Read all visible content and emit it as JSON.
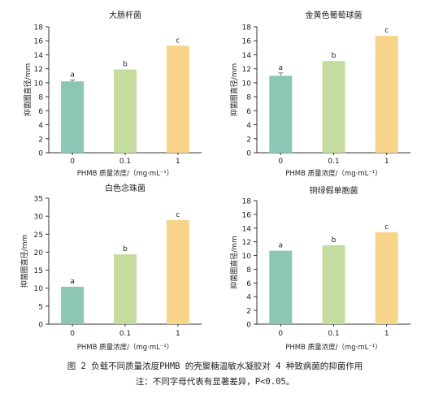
{
  "chart_data": [
    {
      "type": "bar",
      "title": "大肠杆菌",
      "ylabel": "抑菌圈直径/mm",
      "xlabel": "PHMB 质量浓度/（mg·mL⁻¹）",
      "categories": [
        "0",
        "0.1",
        "1"
      ],
      "values": [
        10.2,
        11.9,
        15.3
      ],
      "errors": [
        0.2,
        0.0,
        0.0
      ],
      "letters": [
        "a",
        "b",
        "c"
      ],
      "colors": [
        "#8bc7b4",
        "#c5dc9f",
        "#f7d48a"
      ],
      "yticks": [
        "0",
        "2",
        "4",
        "6",
        "8",
        "10",
        "12",
        "14",
        "16",
        "18"
      ],
      "ylim": [
        0,
        18
      ]
    },
    {
      "type": "bar",
      "title": "金黄色葡萄球菌",
      "ylabel": "抑菌圈直径/mm",
      "xlabel": "PHMB 质量浓度/（mg·mL⁻¹）",
      "categories": [
        "0",
        "0.1",
        "1"
      ],
      "values": [
        11.0,
        13.1,
        16.7
      ],
      "errors": [
        0.4,
        0.0,
        0.0
      ],
      "letters": [
        "a",
        "b",
        "c"
      ],
      "colors": [
        "#8bc7b4",
        "#c5dc9f",
        "#f7d48a"
      ],
      "yticks": [
        "0",
        "2",
        "4",
        "6",
        "8",
        "10",
        "12",
        "14",
        "16",
        "18"
      ],
      "ylim": [
        0,
        18
      ]
    },
    {
      "type": "bar",
      "title": "白色念珠菌",
      "ylabel": "抑菌圈直径/mm",
      "xlabel": "PHMB 质量浓度/（mg·mL⁻¹）",
      "categories": [
        "0",
        "0.1",
        "1"
      ],
      "values": [
        10.4,
        19.4,
        28.9
      ],
      "errors": [
        0.0,
        0.0,
        0.0
      ],
      "letters": [
        "a",
        "b",
        "c"
      ],
      "colors": [
        "#8bc7b4",
        "#c5dc9f",
        "#f7d48a"
      ],
      "yticks": [
        "0",
        "5",
        "10",
        "15",
        "20",
        "25",
        "30",
        "35"
      ],
      "ylim": [
        0,
        35
      ]
    },
    {
      "type": "bar",
      "title": "铜绿假单胞菌",
      "ylabel": "抑菌圈直径/mm",
      "xlabel": "PHMB 质量浓度/（mg·mL⁻¹）",
      "categories": [
        "0",
        "0.1",
        "1"
      ],
      "values": [
        10.7,
        11.5,
        13.4
      ],
      "errors": [
        0.0,
        0.0,
        0.0
      ],
      "letters": [
        "a",
        "b",
        "c"
      ],
      "colors": [
        "#8bc7b4",
        "#c5dc9f",
        "#f7d48a"
      ],
      "yticks": [
        "0",
        "2",
        "4",
        "6",
        "8",
        "10",
        "12",
        "14",
        "16",
        "18"
      ],
      "ylim": [
        0,
        18
      ]
    }
  ],
  "caption": {
    "line1": "图 2  负载不同质量浓度PHMB 的壳聚糖温敏水凝胶对 4 种致病菌的抑菌作用",
    "line2": "注：不同字母代表有显著差异，P<0.05。"
  }
}
